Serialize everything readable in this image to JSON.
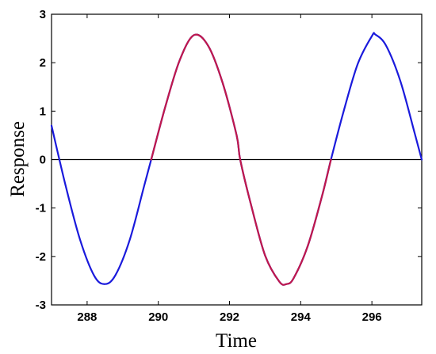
{
  "chart_data": {
    "type": "line",
    "title": "",
    "xlabel": "Time",
    "ylabel": "Response",
    "xlim": [
      287.0,
      297.4
    ],
    "ylim": [
      -3,
      3
    ],
    "xticks": [
      "288",
      "290",
      "292",
      "294",
      "296"
    ],
    "yticks": [
      "-3",
      "-2",
      "-1",
      "0",
      "1",
      "2",
      "3"
    ],
    "grid": false,
    "legend": "none",
    "zero_line": true,
    "series": [
      {
        "color": "#1a1adc",
        "x": [
          287.0,
          287.4,
          287.8,
          288.2,
          288.5,
          288.8,
          289.2,
          289.6,
          289.8,
          290.2,
          290.6,
          291.0,
          291.4,
          291.8,
          292.2,
          292.3,
          292.6,
          293.0,
          293.4,
          293.6,
          293.8,
          294.2,
          294.6,
          294.85,
          295.2,
          295.6,
          296.0,
          296.1,
          296.4,
          296.8,
          297.2,
          297.4
        ],
        "y": [
          0.7,
          -0.55,
          -1.65,
          -2.4,
          -2.57,
          -2.38,
          -1.65,
          -0.55,
          0.0,
          1.1,
          2.05,
          2.57,
          2.35,
          1.6,
          0.5,
          0.0,
          -0.92,
          -1.98,
          -2.52,
          -2.57,
          -2.45,
          -1.78,
          -0.75,
          0.0,
          0.98,
          1.97,
          2.55,
          2.58,
          2.35,
          1.62,
          0.55,
          0.0
        ]
      },
      {
        "color": "#c0184c",
        "x": [
          289.8,
          290.2,
          290.6,
          291.0,
          291.4,
          291.8,
          292.2,
          292.3,
          292.6,
          293.0,
          293.4,
          293.6,
          293.8,
          294.2,
          294.6,
          294.85
        ],
        "y": [
          0.0,
          1.1,
          2.05,
          2.57,
          2.35,
          1.6,
          0.5,
          0.0,
          -0.92,
          -1.98,
          -2.52,
          -2.57,
          -2.45,
          -1.78,
          -0.75,
          0.0
        ]
      }
    ]
  }
}
